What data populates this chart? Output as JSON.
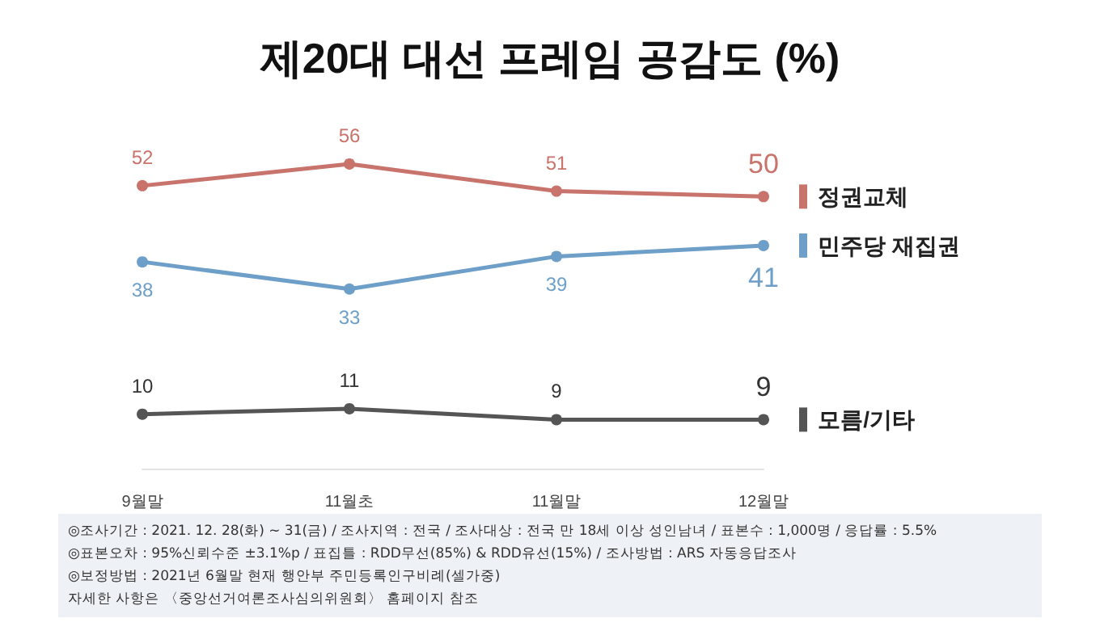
{
  "chart_data": {
    "type": "line",
    "title": "제20대 대선 프레임 공감도 (%)",
    "categories": [
      "9월말",
      "11월초",
      "11월말",
      "12월말"
    ],
    "series": [
      {
        "name": "정권교체",
        "color": "#c8736b",
        "values": [
          52,
          56,
          51,
          50
        ]
      },
      {
        "name": "민주당 재집권",
        "color": "#6e9fc8",
        "values": [
          38,
          33,
          39,
          41
        ]
      },
      {
        "name": "모름/기타",
        "color": "#555555",
        "values": [
          10,
          11,
          9,
          9
        ]
      }
    ],
    "data_labels": true,
    "marker": "circle",
    "grid": false,
    "legend": "right",
    "annotations": [
      "◎조사기간 : 2021. 12. 28(화) ~ 31(금) / 조사지역 : 전국 / 조사대상 : 전국 만 18세 이상 성인남녀 / 표본수 : 1,000명 / 응답률 : 5.5%",
      "◎표본오차 : 95%신뢰수준 ±3.1%p / 표집틀 : RDD무선(85%) & RDD유선(15%) / 조사방법 : ARS 자동응답조사",
      "◎보정방법 : 2021년 6월말 현재 행안부 주민등록인구비례(셀가중)",
      "자세한 사항은 〈중앙선거여론조사심의위원회〉 홈페이지 참조"
    ]
  }
}
